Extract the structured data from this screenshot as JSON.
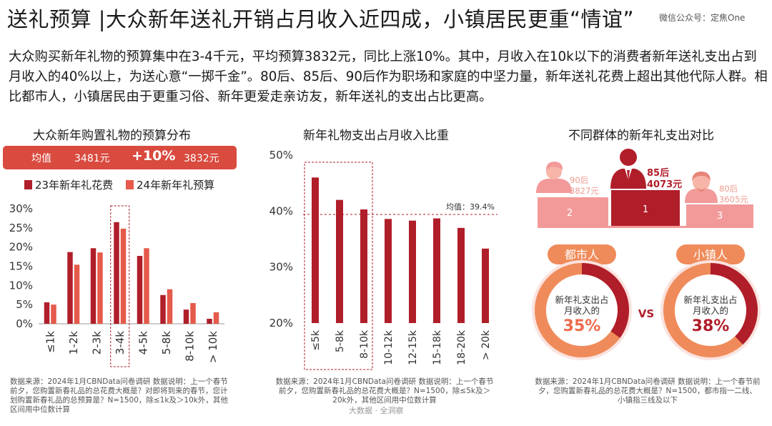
{
  "header": {
    "title": "送礼预算 |大众新年送礼开销占月收入近四成，小镇居民更重“情谊”",
    "watermark": "微信公众号：定焦One"
  },
  "intro": "大众购买新年礼物的预算集中在3-4千元，平均预算3832元，同比上涨10%。其中，月收入在10k以下的消费者新年送礼支出占到月收入的40%以上，为送心意“一掷千金”。80后、85后、90后作为职场和家庭的中坚力量，新年送礼花费上超出其他代际人群。相比都市人，小镇居民由于更重习俗、新年更爱走亲访友，新年送礼的支出占比更高。",
  "colors": {
    "dark_red": "#b01e2a",
    "light_red": "#e55a4b",
    "pink": "#f29a9a",
    "orange": "#ef8b5a",
    "light_pink": "#fbe3df"
  },
  "panel1": {
    "subtitle": "大众新年购置礼物的预算分布",
    "avg": {
      "label": "均值",
      "v23": "3481元",
      "growth": "+10%",
      "v24": "3832元"
    },
    "legend": [
      "23年新年礼花费",
      "24年新年礼预算"
    ],
    "note": "数据来源：2024年1月CBNData问卷调研 数据说明：上一个春节前夕，您购置新春礼品的总花费大概是？对即将到来的春节，您计划购置新春礼品的总预算是？N=1500，除≤1k及＞10k外，其他区间用中位数计算"
  },
  "panel2": {
    "subtitle": "新年礼物支出占月收入比重",
    "avg_label": "均值：39.4%",
    "note": "数据来源：2024年1月CBNData问卷调研 数据说明：上一个春节前夕，您购置新春礼品的总花费大概是？N=1500，除≤5k及＞20k外，其他区间用中位数计算",
    "footer": "大数据 · 全洞察"
  },
  "panel3": {
    "subtitle": "不同群体的新年礼支出对比",
    "podium": [
      {
        "rank": "2",
        "gen": "90后",
        "amount": "3827元"
      },
      {
        "rank": "1",
        "gen": "85后",
        "amount": "4073元"
      },
      {
        "rank": "3",
        "gen": "80后",
        "amount": "3605元"
      }
    ],
    "city": {
      "label": "都市人",
      "text1": "新年礼支出占",
      "text2": "月收入的",
      "pct": "35%",
      "value": 35
    },
    "town": {
      "label": "小镇人",
      "text1": "新年礼支出占",
      "text2": "月收入的",
      "pct": "38%",
      "value": 38
    },
    "vs": "VS",
    "note": "数据来源：2024年1月CBNData问卷调研 数据说明：上一个春节前夕，您购置新春礼品的总花费大概是？N=1500，都市指一二线、小镇指三线及以下"
  },
  "chart_data": [
    {
      "type": "bar",
      "title": "大众新年购置礼物的预算分布",
      "categories": [
        "≤1k",
        "1-2k",
        "2-3k",
        "3-4k",
        "4-5k",
        "5-8k",
        "8-10k",
        "> 10k"
      ],
      "series": [
        {
          "name": "23年新年礼花费",
          "values": [
            5.6,
            18.7,
            19.7,
            26.5,
            17.7,
            7.5,
            3.7,
            1.3
          ]
        },
        {
          "name": "24年新年礼预算",
          "values": [
            5.0,
            15.4,
            18.6,
            24.8,
            19.7,
            9.0,
            5.4,
            3.0
          ]
        }
      ],
      "y_ticks": [
        "0%",
        "5%",
        "10%",
        "15%",
        "20%",
        "25%",
        "30%"
      ],
      "ylim": [
        0,
        30
      ],
      "highlight": "3-4k",
      "legend_position": "top"
    },
    {
      "type": "bar",
      "title": "新年礼物支出占月收入比重",
      "categories": [
        "≤5k",
        "5-8k",
        "8-10k",
        "10-12k",
        "12-15k",
        "15-18k",
        "18-20k",
        "> 20k"
      ],
      "values": [
        46,
        42,
        40.3,
        38.6,
        38.3,
        38.7,
        37,
        33.3
      ],
      "y_ticks": [
        "20%",
        "30%",
        "40%",
        "50%"
      ],
      "ylim": [
        20,
        50
      ],
      "average": 39.4,
      "highlight": [
        "≤5k",
        "5-8k",
        "8-10k"
      ]
    }
  ]
}
